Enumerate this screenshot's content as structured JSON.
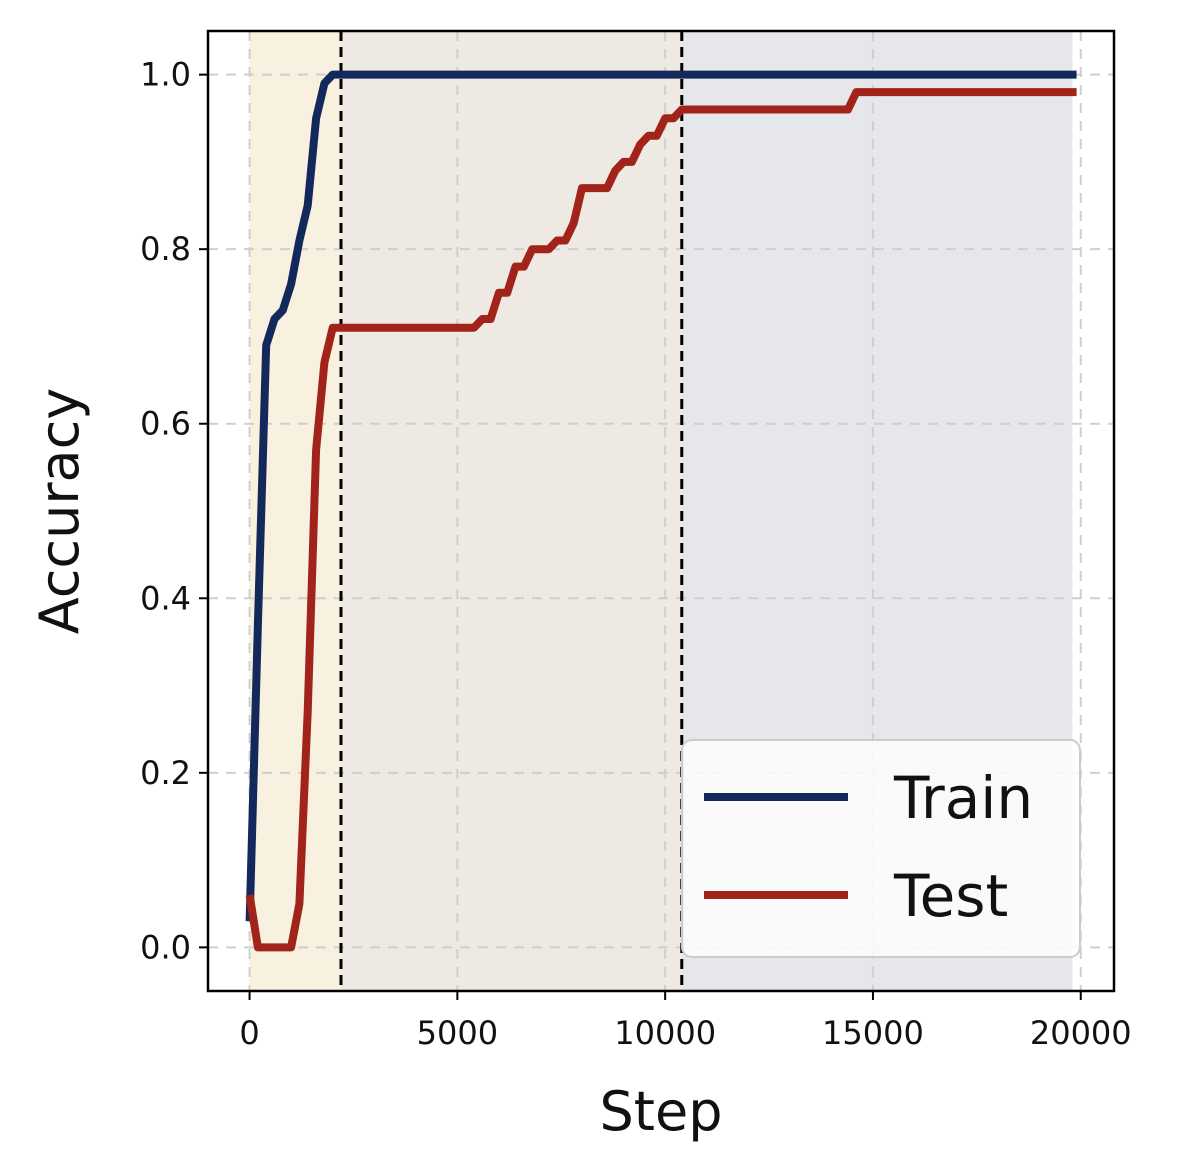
{
  "chart_data": {
    "type": "line",
    "xlabel": "Step",
    "ylabel": "Accuracy",
    "xlim": [
      -1000,
      20800
    ],
    "ylim": [
      -0.05,
      1.05
    ],
    "x_ticks": [
      0,
      5000,
      10000,
      15000,
      20000
    ],
    "x_tick_labels": [
      "0",
      "5000",
      "10000",
      "15000",
      "20000"
    ],
    "y_ticks": [
      0.0,
      0.2,
      0.4,
      0.6,
      0.8,
      1.0
    ],
    "y_tick_labels": [
      "0.0",
      "0.2",
      "0.4",
      "0.6",
      "0.8",
      "1.0"
    ],
    "grid": true,
    "legend_position": "bottom-right",
    "phase_regions": [
      {
        "x_start": 0,
        "x_end": 2200,
        "color": "#f8f1e0"
      },
      {
        "x_start": 2200,
        "x_end": 10400,
        "color": "#eee9e3"
      },
      {
        "x_start": 10400,
        "x_end": 19800,
        "color": "#e6e7ea"
      }
    ],
    "phase_boundaries": [
      2200,
      10400
    ],
    "series": [
      {
        "name": "Train",
        "color": "#13295b",
        "x": [
          0,
          200,
          400,
          600,
          800,
          1000,
          1200,
          1400,
          1600,
          1800,
          2000,
          2200,
          19900
        ],
        "y": [
          0.03,
          0.37,
          0.69,
          0.72,
          0.73,
          0.76,
          0.81,
          0.85,
          0.95,
          0.99,
          1.0,
          1.0,
          1.0
        ]
      },
      {
        "name": "Test",
        "color": "#a2231a",
        "x": [
          0,
          200,
          400,
          600,
          800,
          1000,
          1200,
          1400,
          1600,
          1800,
          2000,
          2200,
          5400,
          5600,
          5800,
          6000,
          6200,
          6400,
          6600,
          6800,
          7000,
          7200,
          7400,
          7600,
          7800,
          8000,
          8200,
          8400,
          8600,
          8800,
          9000,
          9200,
          9400,
          9600,
          9800,
          10000,
          10200,
          10400,
          14400,
          14600,
          19900
        ],
        "y": [
          0.06,
          0.0,
          0.0,
          0.0,
          0.0,
          0.0,
          0.05,
          0.27,
          0.57,
          0.67,
          0.71,
          0.71,
          0.71,
          0.72,
          0.72,
          0.75,
          0.75,
          0.78,
          0.78,
          0.8,
          0.8,
          0.8,
          0.81,
          0.81,
          0.83,
          0.87,
          0.87,
          0.87,
          0.87,
          0.89,
          0.9,
          0.9,
          0.92,
          0.93,
          0.93,
          0.95,
          0.95,
          0.96,
          0.96,
          0.98,
          0.98
        ]
      }
    ]
  }
}
